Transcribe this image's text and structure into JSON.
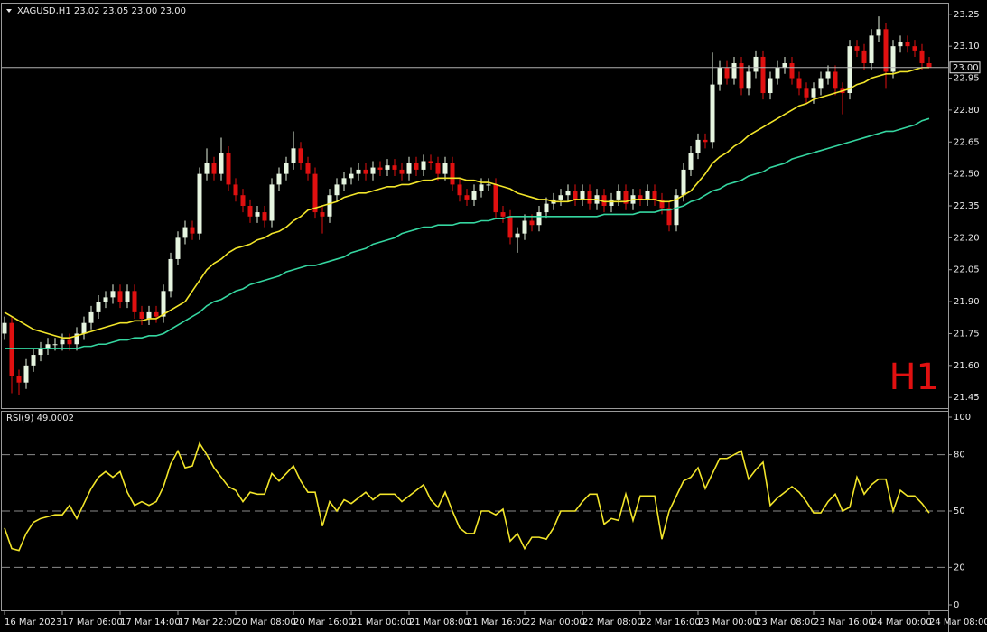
{
  "chart_data": {
    "type": "candlestick",
    "symbol": "XAGUSD,H1",
    "last_bar_labels": [
      "23.02",
      "23.05",
      "23.00",
      "23.00"
    ],
    "timeframe_label": "H1",
    "up_color": "#e6f5e0",
    "down_color": "#e01010",
    "categories": [
      "16 Mar 2023",
      null,
      null,
      null,
      null,
      null,
      null,
      null,
      "17 Mar 06:00",
      null,
      null,
      null,
      null,
      null,
      null,
      null,
      "17 Mar 14:00",
      null,
      null,
      null,
      null,
      null,
      null,
      null,
      "17 Mar 22:00",
      null,
      null,
      null,
      null,
      null,
      null,
      null,
      "20 Mar 08:00",
      null,
      null,
      null,
      null,
      null,
      null,
      null,
      "20 Mar 16:00",
      null,
      null,
      null,
      null,
      null,
      null,
      null,
      "21 Mar 00:00",
      null,
      null,
      null,
      null,
      null,
      null,
      null,
      "21 Mar 08:00",
      null,
      null,
      null,
      null,
      null,
      null,
      null,
      "21 Mar 16:00",
      null,
      null,
      null,
      null,
      null,
      null,
      null,
      "22 Mar 00:00",
      null,
      null,
      null,
      null,
      null,
      null,
      null,
      "22 Mar 08:00",
      null,
      null,
      null,
      null,
      null,
      null,
      null,
      "22 Mar 16:00",
      null,
      null,
      null,
      null,
      null,
      null,
      null,
      "23 Mar 00:00",
      null,
      null,
      null,
      null,
      null,
      null,
      null,
      "23 Mar 08:00",
      null,
      null,
      null,
      null,
      null,
      null,
      null,
      "23 Mar 16:00",
      null,
      null,
      null,
      null,
      null,
      null,
      null,
      "24 Mar 00:00",
      null,
      null,
      null,
      null,
      null,
      null,
      null,
      "24 Mar 08:00"
    ],
    "open": [
      21.75,
      21.8,
      21.55,
      21.52,
      21.6,
      21.65,
      21.68,
      21.7,
      21.7,
      21.72,
      21.7,
      21.75,
      21.8,
      21.85,
      21.9,
      21.92,
      21.95,
      21.9,
      21.95,
      21.85,
      21.82,
      21.85,
      21.83,
      21.95,
      22.1,
      22.2,
      22.25,
      22.22,
      22.5,
      22.55,
      22.5,
      22.6,
      22.45,
      22.4,
      22.35,
      22.3,
      22.32,
      22.28,
      22.45,
      22.5,
      22.55,
      22.62,
      22.55,
      22.5,
      22.32,
      22.3,
      22.4,
      22.45,
      22.48,
      22.5,
      22.52,
      22.5,
      22.53,
      22.52,
      22.54,
      22.52,
      22.5,
      22.55,
      22.52,
      22.56,
      22.55,
      22.5,
      22.55,
      22.45,
      22.4,
      22.38,
      22.42,
      22.45,
      22.45,
      22.32,
      22.3,
      22.2,
      22.22,
      22.28,
      22.26,
      22.32,
      22.36,
      22.38,
      22.4,
      22.42,
      22.38,
      22.42,
      22.36,
      22.4,
      22.35,
      22.38,
      22.42,
      22.36,
      22.4,
      22.38,
      22.42,
      22.38,
      22.34,
      22.26,
      22.4,
      22.52,
      22.6,
      22.66,
      22.65,
      22.92,
      23.0,
      22.95,
      23.02,
      22.9,
      22.98,
      23.05,
      22.88,
      22.95,
      23.0,
      23.02,
      22.95,
      22.9,
      22.86,
      22.9,
      22.95,
      22.98,
      22.9,
      22.88,
      23.1,
      23.08,
      23.02,
      23.15,
      23.18,
      22.98,
      23.1,
      23.12,
      23.1,
      23.08,
      23.02
    ],
    "high": [
      21.83,
      21.83,
      21.58,
      21.63,
      21.68,
      21.71,
      21.73,
      21.73,
      21.75,
      21.75,
      21.78,
      21.83,
      21.88,
      21.93,
      21.95,
      21.98,
      21.98,
      21.98,
      21.98,
      21.88,
      21.88,
      21.88,
      21.98,
      22.13,
      22.23,
      22.28,
      22.28,
      22.53,
      22.62,
      22.58,
      22.67,
      22.63,
      22.48,
      22.43,
      22.38,
      22.35,
      22.35,
      22.48,
      22.53,
      22.58,
      22.7,
      22.65,
      22.58,
      22.53,
      22.35,
      22.43,
      22.48,
      22.51,
      22.53,
      22.55,
      22.55,
      22.56,
      22.56,
      22.57,
      22.57,
      22.55,
      22.58,
      22.58,
      22.59,
      22.59,
      22.58,
      22.58,
      22.58,
      22.48,
      22.43,
      22.45,
      22.48,
      22.48,
      22.48,
      22.35,
      22.33,
      22.25,
      22.31,
      22.31,
      22.35,
      22.39,
      22.41,
      22.43,
      22.45,
      22.45,
      22.45,
      22.45,
      22.43,
      22.43,
      22.41,
      22.45,
      22.45,
      22.43,
      22.43,
      22.45,
      22.45,
      22.41,
      22.37,
      22.43,
      22.55,
      22.63,
      22.69,
      22.69,
      23.07,
      23.03,
      23.03,
      23.05,
      23.05,
      23.01,
      23.08,
      23.08,
      22.98,
      23.03,
      23.05,
      23.05,
      22.98,
      22.93,
      22.93,
      22.98,
      23.01,
      23.01,
      22.93,
      23.13,
      23.13,
      23.11,
      23.18,
      23.24,
      23.21,
      23.13,
      23.15,
      23.15,
      23.13,
      23.11,
      23.05
    ],
    "low": [
      21.72,
      21.47,
      21.46,
      21.49,
      21.57,
      21.62,
      21.65,
      21.67,
      21.67,
      21.67,
      21.67,
      21.72,
      21.77,
      21.82,
      21.87,
      21.89,
      21.87,
      21.87,
      21.82,
      21.79,
      21.79,
      21.8,
      21.8,
      21.92,
      22.07,
      22.17,
      22.19,
      22.19,
      22.47,
      22.47,
      22.47,
      22.42,
      22.37,
      22.32,
      22.27,
      22.27,
      22.25,
      22.25,
      22.42,
      22.47,
      22.52,
      22.52,
      22.47,
      22.29,
      22.22,
      22.27,
      22.37,
      22.42,
      22.45,
      22.47,
      22.47,
      22.47,
      22.49,
      22.49,
      22.49,
      22.47,
      22.47,
      22.49,
      22.49,
      22.52,
      22.47,
      22.47,
      22.42,
      22.37,
      22.35,
      22.35,
      22.39,
      22.42,
      22.29,
      22.27,
      22.17,
      22.13,
      22.19,
      22.23,
      22.23,
      22.29,
      22.33,
      22.35,
      22.37,
      22.35,
      22.35,
      22.33,
      22.33,
      22.32,
      22.32,
      22.35,
      22.33,
      22.33,
      22.35,
      22.35,
      22.35,
      22.31,
      22.23,
      22.23,
      22.37,
      22.49,
      22.57,
      22.62,
      22.62,
      22.89,
      22.92,
      22.92,
      22.87,
      22.87,
      22.95,
      22.85,
      22.85,
      22.92,
      22.97,
      22.92,
      22.87,
      22.83,
      22.83,
      22.87,
      22.92,
      22.87,
      22.78,
      22.85,
      23.05,
      22.99,
      22.99,
      23.12,
      22.9,
      22.95,
      23.07,
      23.07,
      23.05,
      22.99,
      23.0
    ],
    "close": [
      21.8,
      21.55,
      21.52,
      21.6,
      21.65,
      21.68,
      21.7,
      21.7,
      21.72,
      21.7,
      21.75,
      21.8,
      21.85,
      21.9,
      21.92,
      21.95,
      21.9,
      21.95,
      21.85,
      21.82,
      21.85,
      21.83,
      21.95,
      22.1,
      22.2,
      22.25,
      22.22,
      22.5,
      22.55,
      22.5,
      22.6,
      22.45,
      22.4,
      22.35,
      22.3,
      22.32,
      22.28,
      22.45,
      22.5,
      22.55,
      22.62,
      22.55,
      22.5,
      22.32,
      22.3,
      22.4,
      22.45,
      22.48,
      22.5,
      22.52,
      22.5,
      22.53,
      22.52,
      22.54,
      22.52,
      22.5,
      22.55,
      22.52,
      22.56,
      22.55,
      22.5,
      22.55,
      22.45,
      22.4,
      22.38,
      22.42,
      22.45,
      22.45,
      22.32,
      22.3,
      22.2,
      22.22,
      22.28,
      22.26,
      22.32,
      22.36,
      22.38,
      22.4,
      22.42,
      22.38,
      22.42,
      22.36,
      22.4,
      22.35,
      22.38,
      22.42,
      22.36,
      22.4,
      22.38,
      22.42,
      22.38,
      22.34,
      22.26,
      22.4,
      22.52,
      22.6,
      22.66,
      22.65,
      22.92,
      23.0,
      22.95,
      23.02,
      22.9,
      22.98,
      23.05,
      22.88,
      22.95,
      23.0,
      23.02,
      22.95,
      22.9,
      22.86,
      22.9,
      22.95,
      22.98,
      22.9,
      22.88,
      23.1,
      23.08,
      23.02,
      23.15,
      23.18,
      22.98,
      23.1,
      23.12,
      23.1,
      23.08,
      23.02,
      23.0
    ],
    "overlays": [
      {
        "color": "#f2e52a",
        "values": [
          21.85,
          21.83,
          21.81,
          21.79,
          21.77,
          21.76,
          21.75,
          21.74,
          21.73,
          21.73,
          21.74,
          21.75,
          21.76,
          21.77,
          21.78,
          21.79,
          21.8,
          21.8,
          21.81,
          21.81,
          21.82,
          21.82,
          21.84,
          21.86,
          21.88,
          21.9,
          21.95,
          22.0,
          22.05,
          22.08,
          22.1,
          22.13,
          22.15,
          22.16,
          22.17,
          22.19,
          22.2,
          22.22,
          22.23,
          22.25,
          22.28,
          22.3,
          22.33,
          22.34,
          22.35,
          22.36,
          22.37,
          22.39,
          22.4,
          22.41,
          22.41,
          22.42,
          22.43,
          22.44,
          22.44,
          22.45,
          22.45,
          22.46,
          22.47,
          22.47,
          22.48,
          22.48,
          22.48,
          22.48,
          22.47,
          22.47,
          22.46,
          22.46,
          22.45,
          22.44,
          22.43,
          22.41,
          22.4,
          22.39,
          22.38,
          22.38,
          22.37,
          22.37,
          22.37,
          22.38,
          22.38,
          22.38,
          22.38,
          22.37,
          22.37,
          22.37,
          22.37,
          22.38,
          22.38,
          22.38,
          22.38,
          22.37,
          22.37,
          22.38,
          22.4,
          22.42,
          22.46,
          22.5,
          22.55,
          22.58,
          22.6,
          22.63,
          22.65,
          22.68,
          22.7,
          22.72,
          22.74,
          22.76,
          22.78,
          22.8,
          22.82,
          22.83,
          22.85,
          22.86,
          22.87,
          22.88,
          22.89,
          22.9,
          22.92,
          22.93,
          22.95,
          22.96,
          22.97,
          22.97,
          22.98,
          22.98,
          22.99,
          23.0,
          23.0
        ]
      },
      {
        "color": "#35d6a0",
        "values": [
          21.68,
          21.68,
          21.68,
          21.68,
          21.68,
          21.68,
          21.68,
          21.68,
          21.68,
          21.68,
          21.68,
          21.69,
          21.69,
          21.7,
          21.7,
          21.71,
          21.72,
          21.72,
          21.73,
          21.73,
          21.74,
          21.74,
          21.75,
          21.77,
          21.79,
          21.81,
          21.83,
          21.85,
          21.88,
          21.9,
          21.91,
          21.93,
          21.95,
          21.96,
          21.98,
          21.99,
          22.0,
          22.01,
          22.02,
          22.04,
          22.05,
          22.06,
          22.07,
          22.07,
          22.08,
          22.09,
          22.1,
          22.11,
          22.13,
          22.14,
          22.15,
          22.17,
          22.18,
          22.19,
          22.2,
          22.22,
          22.23,
          22.24,
          22.25,
          22.25,
          22.26,
          22.26,
          22.26,
          22.27,
          22.27,
          22.27,
          22.28,
          22.28,
          22.29,
          22.29,
          22.3,
          22.3,
          22.3,
          22.3,
          22.3,
          22.3,
          22.3,
          22.3,
          22.3,
          22.3,
          22.3,
          22.3,
          22.3,
          22.31,
          22.31,
          22.31,
          22.31,
          22.31,
          22.32,
          22.32,
          22.32,
          22.33,
          22.33,
          22.34,
          22.35,
          22.37,
          22.38,
          22.4,
          22.42,
          22.43,
          22.45,
          22.46,
          22.47,
          22.49,
          22.5,
          22.51,
          22.53,
          22.54,
          22.55,
          22.57,
          22.58,
          22.59,
          22.6,
          22.61,
          22.62,
          22.63,
          22.64,
          22.65,
          22.66,
          22.67,
          22.68,
          22.69,
          22.7,
          22.7,
          22.71,
          22.72,
          22.73,
          22.75,
          22.76
        ]
      }
    ],
    "ylim": [
      21.4,
      23.3
    ],
    "yticks": [
      21.45,
      {
        "value": 21.6,
        "label": "21.60"
      },
      21.75,
      {
        "value": 21.9,
        "label": "21.90"
      },
      22.05,
      {
        "value": 22.2,
        "label": "22.20"
      },
      22.35,
      {
        "value": 22.5,
        "label": "22.50"
      },
      22.65,
      {
        "value": 22.8,
        "label": "22.80"
      },
      22.95,
      {
        "value": 23.1,
        "label": "23.10"
      },
      23.25
    ],
    "rsi": {
      "type": "line",
      "label": "RSI(9)",
      "color": "#f2e52a",
      "values": [
        41,
        30,
        29,
        38,
        44,
        46,
        47,
        48,
        48,
        53,
        46,
        54,
        62,
        68,
        71,
        68,
        71,
        60,
        53,
        55,
        53,
        55,
        63,
        75,
        82,
        73,
        74,
        86,
        80,
        73,
        68,
        63,
        61,
        55,
        60,
        59,
        59,
        70,
        66,
        70,
        74,
        66,
        60,
        60,
        42,
        55,
        50,
        56,
        54,
        57,
        60,
        56,
        59,
        59,
        59,
        55,
        58,
        61,
        64,
        56,
        52,
        60,
        50,
        41,
        38,
        38,
        50,
        50,
        48,
        51,
        34,
        38,
        30,
        36,
        36,
        35,
        41,
        50,
        50,
        50,
        55,
        59,
        59,
        43,
        46,
        45,
        59,
        45,
        58,
        58,
        58,
        35,
        50,
        58,
        66,
        68,
        73,
        62,
        70,
        78,
        78,
        80,
        82,
        67,
        72,
        76,
        53,
        57,
        60,
        63,
        60,
        55,
        49,
        49,
        55,
        59,
        50,
        52,
        68,
        59,
        64,
        67,
        67,
        50,
        61,
        58,
        58,
        54,
        49.0002
      ],
      "ylim": [
        0,
        100
      ],
      "yticks": [
        0,
        20,
        50,
        80,
        100
      ],
      "levels": [
        20,
        50,
        80
      ]
    }
  }
}
